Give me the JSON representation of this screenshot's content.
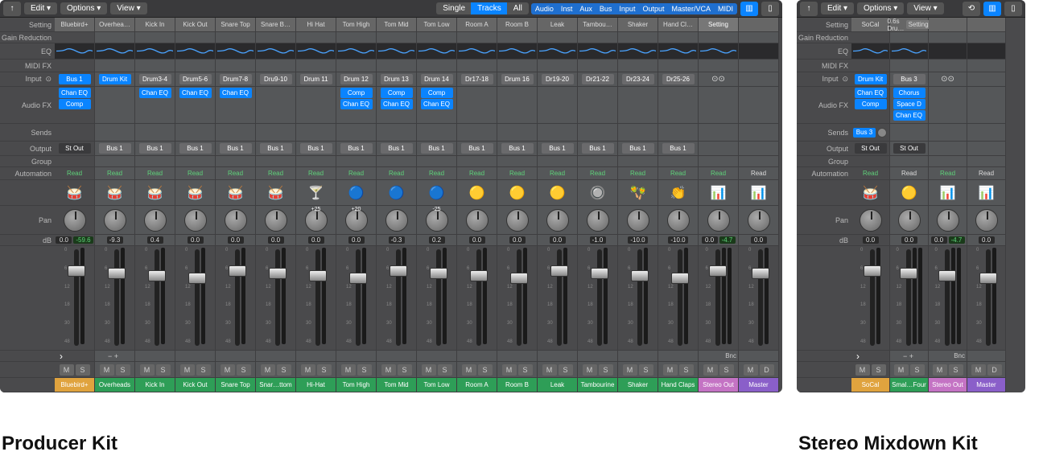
{
  "captions": {
    "left": "Producer Kit",
    "right": "Stereo Mixdown Kit"
  },
  "topbar": {
    "edit": "Edit",
    "options": "Options",
    "view": "View",
    "modes": [
      "Single",
      "Tracks",
      "All"
    ],
    "mode_sel": 1,
    "filters": [
      "Audio",
      "Inst",
      "Aux",
      "Bus",
      "Input",
      "Output",
      "Master/VCA",
      "MIDI"
    ]
  },
  "rowLabels": {
    "setting": "Setting",
    "gainred": "Gain Reduction",
    "eq": "EQ",
    "midifx": "MIDI FX",
    "input": "Input",
    "audiofx": "Audio FX",
    "sends": "Sends",
    "output": "Output",
    "group": "Group",
    "auto": "Automation",
    "pan": "Pan",
    "db": "dB"
  },
  "left": {
    "strips": [
      {
        "name": "Bluebird+",
        "setting": "Bluebird+",
        "input": "Bus 1",
        "inputBlue": true,
        "audiofx": [
          [
            "Chan EQ",
            true
          ],
          [
            "Comp",
            true
          ]
        ],
        "output": "St Out",
        "outGrey": true,
        "auto": "Read",
        "icon": "🥁",
        "pan": "",
        "db": "0.0",
        "db2": "-59.6",
        "db2green": true,
        "ms": [
          "M",
          "S"
        ],
        "color": "#e0a33e",
        "settingGrey": true
      },
      {
        "name": "Overheads",
        "setting": "Overhea…",
        "input": "Drum Kit",
        "inputBlue": true,
        "audiofx": [],
        "output": "Bus 1",
        "auto": "Read",
        "icon": "🥁",
        "db": "-9.3",
        "ms": [
          "M",
          "S"
        ],
        "color": "#2e9e57"
      },
      {
        "name": "Kick In",
        "setting": "Kick In",
        "input": "Drum3-4",
        "audiofx": [
          [
            "Chan EQ",
            true
          ]
        ],
        "output": "Bus 1",
        "auto": "Read",
        "icon": "🥁",
        "db": "0.4",
        "ms": [
          "M",
          "S"
        ],
        "color": "#2e9e57"
      },
      {
        "name": "Kick Out",
        "setting": "Kick Out",
        "input": "Drum5-6",
        "audiofx": [
          [
            "Chan EQ",
            true
          ]
        ],
        "output": "Bus 1",
        "auto": "Read",
        "icon": "🥁",
        "db": "0.0",
        "ms": [
          "M",
          "S"
        ],
        "color": "#2e9e57"
      },
      {
        "name": "Snare Top",
        "setting": "Snare Top",
        "input": "Drum7-8",
        "audiofx": [
          [
            "Chan EQ",
            true
          ]
        ],
        "output": "Bus 1",
        "auto": "Read",
        "icon": "🥁",
        "db": "0.0",
        "ms": [
          "M",
          "S"
        ],
        "color": "#2e9e57"
      },
      {
        "name": "Snar…ttom",
        "setting": "Snare B…",
        "input": "Dru9-10",
        "audiofx": [],
        "output": "Bus 1",
        "auto": "Read",
        "icon": "🥁",
        "db": "0.0",
        "ms": [
          "M",
          "S"
        ],
        "color": "#2e9e57"
      },
      {
        "name": "Hi-Hat",
        "setting": "Hi Hat",
        "input": "Drum 11",
        "audiofx": [],
        "output": "Bus 1",
        "auto": "Read",
        "icon": "🍸",
        "pan": "+25",
        "db": "0.0",
        "ms": [
          "M",
          "S"
        ],
        "color": "#2e9e57"
      },
      {
        "name": "Tom High",
        "setting": "Tom High",
        "input": "Drum 12",
        "audiofx": [
          [
            "Comp",
            true
          ],
          [
            "Chan EQ",
            true
          ]
        ],
        "output": "Bus 1",
        "auto": "Read",
        "icon": "🔵",
        "pan": "+20",
        "db": "0.0",
        "ms": [
          "M",
          "S"
        ],
        "color": "#2e9e57"
      },
      {
        "name": "Tom Mid",
        "setting": "Tom Mid",
        "input": "Drum 13",
        "audiofx": [
          [
            "Comp",
            true
          ],
          [
            "Chan EQ",
            true
          ]
        ],
        "output": "Bus 1",
        "auto": "Read",
        "icon": "🔵",
        "db": "-0.3",
        "ms": [
          "M",
          "S"
        ],
        "color": "#2e9e57"
      },
      {
        "name": "Tom Low",
        "setting": "Tom Low",
        "input": "Drum 14",
        "audiofx": [
          [
            "Comp",
            true
          ],
          [
            "Chan EQ",
            true
          ]
        ],
        "output": "Bus 1",
        "auto": "Read",
        "icon": "🔵",
        "pan": "-25",
        "db": "0.2",
        "ms": [
          "M",
          "S"
        ],
        "color": "#2e9e57"
      },
      {
        "name": "Room A",
        "setting": "Room A",
        "input": "Dr17-18",
        "audiofx": [],
        "output": "Bus 1",
        "auto": "Read",
        "icon": "🟡",
        "db": "0.0",
        "ms": [
          "M",
          "S"
        ],
        "color": "#2e9e57"
      },
      {
        "name": "Room B",
        "setting": "Room B",
        "input": "Drum 16",
        "audiofx": [],
        "output": "Bus 1",
        "auto": "Read",
        "icon": "🟡",
        "db": "0.0",
        "ms": [
          "M",
          "S"
        ],
        "color": "#2e9e57"
      },
      {
        "name": "Leak",
        "setting": "Leak",
        "input": "Dr19-20",
        "audiofx": [],
        "output": "Bus 1",
        "auto": "Read",
        "icon": "🟡",
        "db": "0.0",
        "ms": [
          "M",
          "S"
        ],
        "color": "#2e9e57"
      },
      {
        "name": "Tambourine",
        "setting": "Tambou…",
        "input": "Dr21-22",
        "audiofx": [],
        "output": "Bus 1",
        "auto": "Read",
        "icon": "🔘",
        "db": "-1.0",
        "ms": [
          "M",
          "S"
        ],
        "color": "#2e9e57"
      },
      {
        "name": "Shaker",
        "setting": "Shaker",
        "input": "Dr23-24",
        "audiofx": [],
        "output": "Bus 1",
        "auto": "Read",
        "icon": "🪇",
        "db": "-10.0",
        "ms": [
          "M",
          "S"
        ],
        "color": "#2e9e57"
      },
      {
        "name": "Hand Claps",
        "setting": "Hand Cl…",
        "input": "Dr25-26",
        "audiofx": [],
        "output": "Bus 1",
        "auto": "Read",
        "icon": "👏",
        "db": "-10.0",
        "ms": [
          "M",
          "S"
        ],
        "color": "#2e9e57"
      },
      {
        "name": "Stereo Out",
        "setting": "Setting",
        "settingBtn": true,
        "input": "",
        "audiofx": [],
        "output": "",
        "auto": "Read",
        "icon": "📊",
        "db": "0.0",
        "db2": "-4.7",
        "db2green": true,
        "ms": [
          "M",
          "S"
        ],
        "color": "#c473c4",
        "bnc": "Bnc",
        "stereo": true
      },
      {
        "name": "Master",
        "setting": "",
        "input": "",
        "audiofx": [],
        "output": "",
        "auto": "Read",
        "icon": "📊",
        "db": "0.0",
        "ms": [
          "M",
          "D"
        ],
        "color": "#8a5fc9",
        "stereo": false,
        "whiteAuto": true
      }
    ]
  },
  "right": {
    "strips": [
      {
        "name": "SoCal",
        "setting": "SoCal",
        "input": "Drum Kit",
        "inputBlue": true,
        "audiofx": [
          [
            "Chan EQ",
            true
          ],
          [
            "Comp",
            true
          ]
        ],
        "sends": [
          [
            "Bus 3",
            true
          ]
        ],
        "output": "St Out",
        "outGrey": true,
        "auto": "Read",
        "icon": "🥁",
        "db": "0.0",
        "ms": [
          "M",
          "S"
        ],
        "color": "#e0a33e",
        "settingGrey": true
      },
      {
        "name": "Smal…Four",
        "setting": "0.6s Dru…",
        "input": "Bus 3",
        "audiofx": [
          [
            "Chorus",
            true
          ],
          [
            "Space D",
            true
          ],
          [
            "Chan EQ",
            true
          ]
        ],
        "output": "St Out",
        "outGrey": true,
        "auto": "Read",
        "icon": "🟡",
        "db": "0.0",
        "ms": [
          "M",
          "S"
        ],
        "color": "#2e9e57",
        "stereo": true,
        "whiteAuto": true,
        "settingBtn2": "Setting"
      },
      {
        "name": "Stereo Out",
        "setting": "",
        "input": "",
        "audiofx": [],
        "output": "",
        "auto": "Read",
        "icon": "📊",
        "db": "0.0",
        "db2": "-4.7",
        "db2green": true,
        "ms": [
          "M",
          "S"
        ],
        "color": "#c473c4",
        "bnc": "Bnc",
        "stereo": true
      },
      {
        "name": "Master",
        "setting": "",
        "input": "",
        "audiofx": [],
        "output": "",
        "auto": "Read",
        "icon": "📊",
        "db": "0.0",
        "ms": [
          "M",
          "D"
        ],
        "color": "#8a5fc9",
        "whiteAuto": true
      }
    ]
  },
  "scaleMarks": [
    "0",
    "6",
    "12",
    "18",
    "30",
    "48"
  ]
}
